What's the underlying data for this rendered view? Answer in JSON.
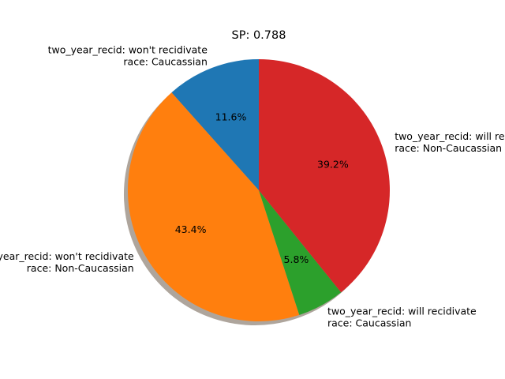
{
  "chart_data": {
    "type": "pie",
    "title": "SP: 0.788",
    "shadow": true,
    "start_angle_deg": 90,
    "direction": "counterclockwise",
    "slices": [
      {
        "label_lines": [
          "two_year_recid: won't recidivate",
          "race: Caucassian"
        ],
        "value": 11.6,
        "pct_label": "11.6%",
        "color": "#1f77b4"
      },
      {
        "label_lines": [
          "two_year_recid: won't recidivate",
          "race: Non-Caucassian"
        ],
        "value": 43.4,
        "pct_label": "43.4%",
        "color": "#ff7f0e"
      },
      {
        "label_lines": [
          "two_year_recid: will recidivate",
          "race: Caucassian"
        ],
        "value": 5.8,
        "pct_label": "5.8%",
        "color": "#2ca02c"
      },
      {
        "label_lines": [
          "two_year_recid: will recidivate",
          "race: Non-Caucassian"
        ],
        "value": 39.2,
        "pct_label": "39.2%",
        "color": "#d62728"
      }
    ]
  }
}
